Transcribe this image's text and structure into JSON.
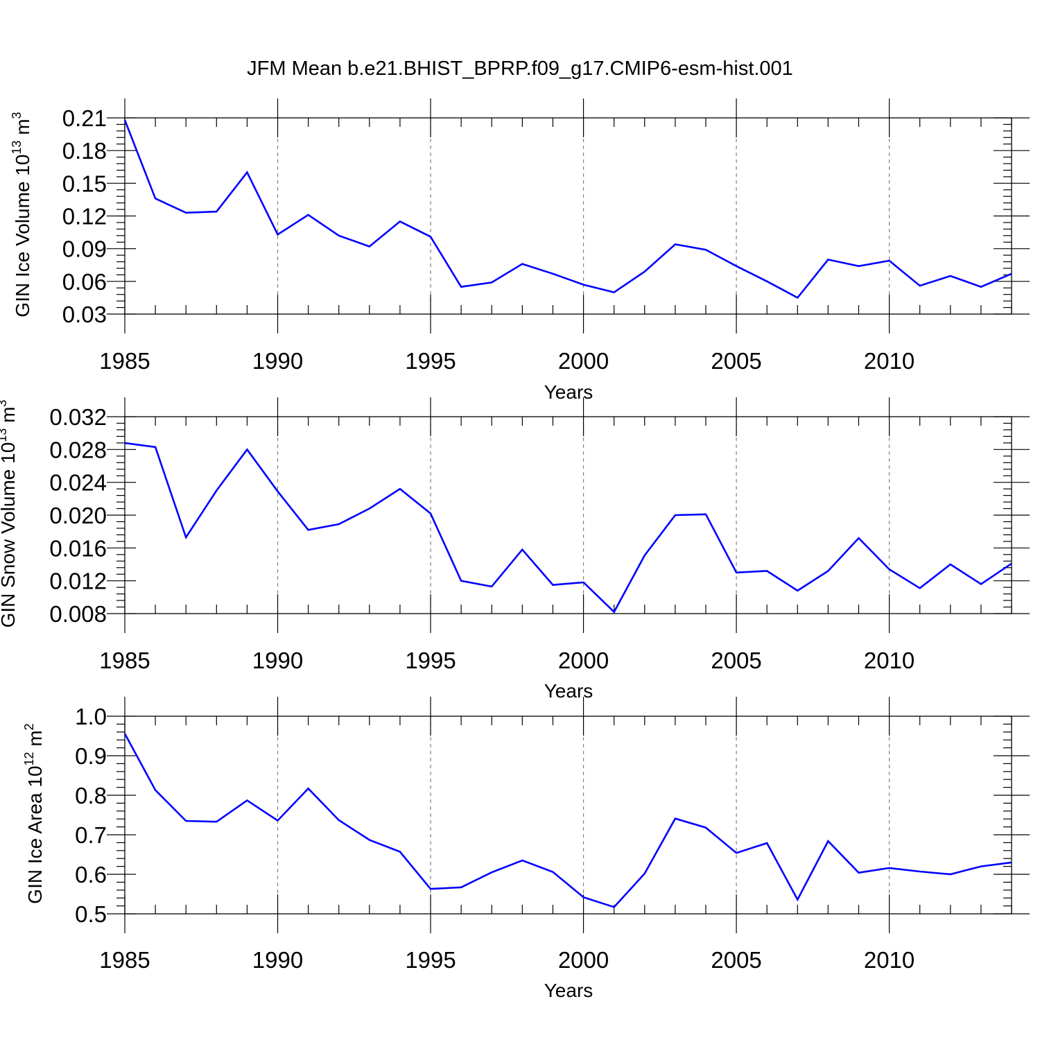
{
  "title": "JFM Mean b.e21.BHIST_BPRP.f09_g17.CMIP6-esm-hist.001",
  "colors": {
    "line": "#0000ff",
    "axis": "#000000",
    "grid": "#808080"
  },
  "chart_data": [
    {
      "type": "line",
      "ylabel": {
        "main": "GIN Ice Volume 10",
        "exp": "13",
        "unit": " m",
        "unit_exp": "3"
      },
      "xlabel": "Years",
      "xlim": [
        1985,
        2014
      ],
      "ylim": [
        0.03,
        0.21
      ],
      "yticks": [
        "0.03",
        "0.06",
        "0.09",
        "0.12",
        "0.15",
        "0.18",
        "0.21"
      ],
      "xticks": [
        "1985",
        "1990",
        "1995",
        "2000",
        "2005",
        "2010"
      ],
      "x": [
        1985,
        1986,
        1987,
        1988,
        1989,
        1990,
        1991,
        1992,
        1993,
        1994,
        1995,
        1996,
        1997,
        1998,
        1999,
        2000,
        2001,
        2002,
        2003,
        2004,
        2005,
        2006,
        2007,
        2008,
        2009,
        2010,
        2011,
        2012,
        2013,
        2014
      ],
      "values": [
        0.208,
        0.136,
        0.123,
        0.124,
        0.16,
        0.103,
        0.121,
        0.102,
        0.092,
        0.115,
        0.101,
        0.055,
        0.059,
        0.076,
        0.067,
        0.057,
        0.05,
        0.069,
        0.094,
        0.089,
        0.074,
        0.06,
        0.045,
        0.08,
        0.074,
        0.079,
        0.056,
        0.065,
        0.055,
        0.067
      ]
    },
    {
      "type": "line",
      "ylabel": {
        "main": "GIN Snow Volume 10",
        "exp": "13",
        "unit": " m",
        "unit_exp": "3"
      },
      "xlabel": "Years",
      "xlim": [
        1985,
        2014
      ],
      "ylim": [
        0.008,
        0.032
      ],
      "yticks": [
        "0.008",
        "0.012",
        "0.016",
        "0.020",
        "0.024",
        "0.028",
        "0.032"
      ],
      "xticks": [
        "1985",
        "1990",
        "1995",
        "2000",
        "2005",
        "2010"
      ],
      "x": [
        1985,
        1986,
        1987,
        1988,
        1989,
        1990,
        1991,
        1992,
        1993,
        1994,
        1995,
        1996,
        1997,
        1998,
        1999,
        2000,
        2001,
        2002,
        2003,
        2004,
        2005,
        2006,
        2007,
        2008,
        2009,
        2010,
        2011,
        2012,
        2013,
        2014
      ],
      "values": [
        0.0288,
        0.0283,
        0.0173,
        0.023,
        0.028,
        0.0229,
        0.0182,
        0.0189,
        0.0208,
        0.0232,
        0.0202,
        0.012,
        0.0113,
        0.0158,
        0.0115,
        0.0118,
        0.0082,
        0.0151,
        0.02,
        0.0201,
        0.013,
        0.0132,
        0.0108,
        0.0132,
        0.0172,
        0.0134,
        0.0111,
        0.014,
        0.0116,
        0.0141
      ]
    },
    {
      "type": "line",
      "ylabel": {
        "main": "GIN Ice Area 10",
        "exp": "12",
        "unit": " m",
        "unit_exp": "2"
      },
      "xlabel": "Years",
      "xlim": [
        1985,
        2014
      ],
      "ylim": [
        0.5,
        1.0
      ],
      "yticks": [
        "0.5",
        "0.6",
        "0.7",
        "0.8",
        "0.9",
        "1.0"
      ],
      "xticks": [
        "1985",
        "1990",
        "1995",
        "2000",
        "2005",
        "2010"
      ],
      "x": [
        1985,
        1986,
        1987,
        1988,
        1989,
        1990,
        1991,
        1992,
        1993,
        1994,
        1995,
        1996,
        1997,
        1998,
        1999,
        2000,
        2001,
        2002,
        2003,
        2004,
        2005,
        2006,
        2007,
        2008,
        2009,
        2010,
        2011,
        2012,
        2013,
        2014
      ],
      "values": [
        0.956,
        0.813,
        0.735,
        0.733,
        0.787,
        0.736,
        0.817,
        0.737,
        0.687,
        0.657,
        0.563,
        0.567,
        0.605,
        0.635,
        0.606,
        0.542,
        0.517,
        0.602,
        0.741,
        0.718,
        0.654,
        0.679,
        0.536,
        0.684,
        0.604,
        0.616,
        0.607,
        0.6,
        0.62,
        0.63
      ]
    }
  ]
}
